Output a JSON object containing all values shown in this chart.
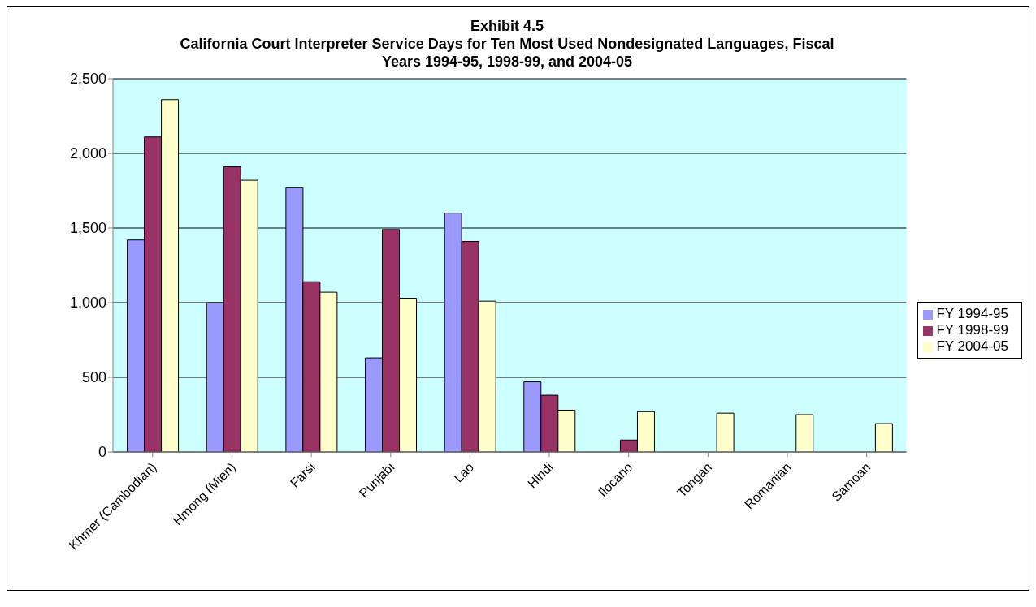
{
  "chart_data": {
    "type": "bar",
    "title": "Exhibit 4.5",
    "subtitle": "California Court Interpreter Service Days for Ten Most Used Nondesignated Languages, Fiscal Years 1994-95, 1998-99, and 2004-05",
    "categories": [
      "Khmer (Cambodian)",
      "Hmong (Mien)",
      "Farsi",
      "Punjabi",
      "Lao",
      "Hindi",
      "Ilocano",
      "Tongan",
      "Romanian",
      "Samoan"
    ],
    "series": [
      {
        "name": "FY 1994-95",
        "color": "#9999ff",
        "values": [
          1420,
          1000,
          1770,
          630,
          1600,
          470,
          null,
          null,
          null,
          null
        ]
      },
      {
        "name": "FY 1998-99",
        "color": "#993366",
        "values": [
          2110,
          1910,
          1140,
          1490,
          1410,
          380,
          80,
          null,
          null,
          null
        ]
      },
      {
        "name": "FY 2004-05",
        "color": "#ffffcc",
        "values": [
          2360,
          1820,
          1070,
          1030,
          1010,
          280,
          270,
          260,
          250,
          190
        ]
      }
    ],
    "ylim": [
      0,
      2500
    ],
    "yticks": [
      {
        "value": 0,
        "label": "0"
      },
      {
        "value": 500,
        "label": "500"
      },
      {
        "value": 1000,
        "label": "1,000"
      },
      {
        "value": 1500,
        "label": "1,500"
      },
      {
        "value": 2000,
        "label": "2,000"
      },
      {
        "value": 2500,
        "label": "2,500"
      }
    ],
    "grid": "y",
    "legend": "right"
  }
}
